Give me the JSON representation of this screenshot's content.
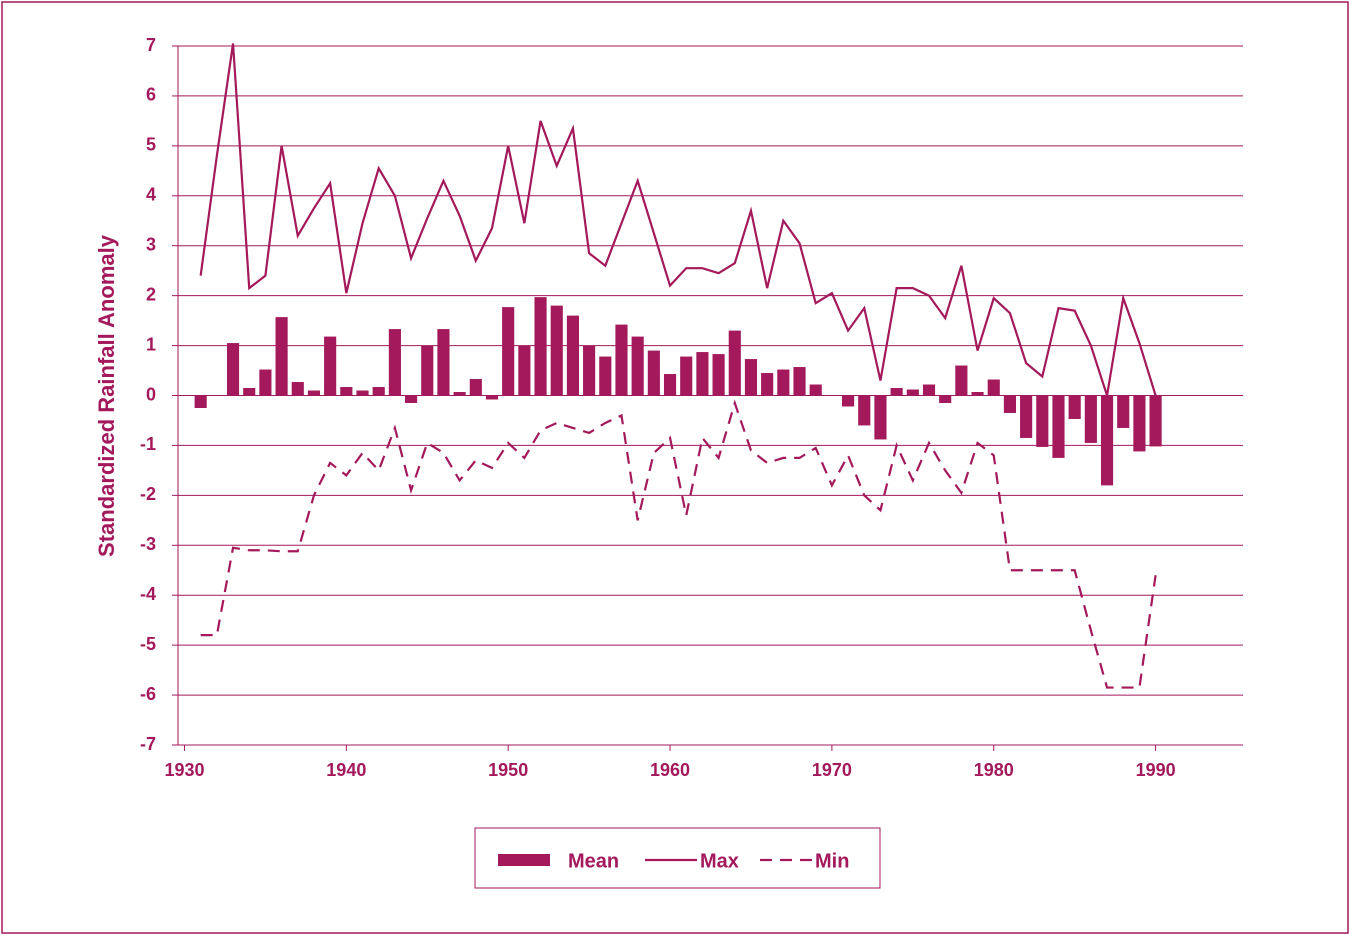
{
  "chart_data": {
    "type": "bar_line",
    "y_axis_label": "Standardized Rainfall Anomaly",
    "x": [
      1931,
      1932,
      1933,
      1934,
      1935,
      1936,
      1937,
      1938,
      1939,
      1940,
      1941,
      1942,
      1943,
      1944,
      1945,
      1946,
      1947,
      1948,
      1949,
      1950,
      1951,
      1952,
      1953,
      1954,
      1955,
      1956,
      1957,
      1958,
      1959,
      1960,
      1961,
      1962,
      1963,
      1964,
      1965,
      1966,
      1967,
      1968,
      1969,
      1970,
      1971,
      1972,
      1973,
      1974,
      1975,
      1976,
      1977,
      1978,
      1979,
      1980,
      1981,
      1982,
      1983,
      1984,
      1985,
      1986,
      1987,
      1988,
      1989,
      1990
    ],
    "series": [
      {
        "name": "Mean",
        "kind": "bar",
        "color": "#a3195b",
        "values": [
          -0.25,
          0,
          1.05,
          0.15,
          0.52,
          1.57,
          0.27,
          0.1,
          1.18,
          0.17,
          0.1,
          0.17,
          1.33,
          -0.15,
          1.0,
          1.33,
          0.07,
          0.33,
          -0.08,
          1.77,
          1.0,
          1.97,
          1.8,
          1.6,
          1.0,
          0.78,
          1.42,
          1.18,
          0.9,
          0.43,
          0.78,
          0.87,
          0.83,
          1.3,
          0.73,
          0.45,
          0.52,
          0.57,
          0.22,
          0,
          -0.22,
          -0.6,
          -0.88,
          0.15,
          0.12,
          0.22,
          -0.15,
          0.6,
          0.07,
          0.32,
          -0.35,
          -0.85,
          -1.03,
          -1.25,
          -0.47,
          -0.95,
          -1.8,
          -0.65,
          -1.12,
          -1.02
        ]
      },
      {
        "name": "Max",
        "kind": "line",
        "dash": "solid",
        "color": "#a3195b",
        "values": [
          2.4,
          4.8,
          7.05,
          2.15,
          2.4,
          5.0,
          3.2,
          3.75,
          4.25,
          2.05,
          3.45,
          4.55,
          4.0,
          2.75,
          3.55,
          4.3,
          3.6,
          2.7,
          3.35,
          5.0,
          3.45,
          5.5,
          4.6,
          5.35,
          2.85,
          2.6,
          3.45,
          4.3,
          3.25,
          2.2,
          2.55,
          2.55,
          2.45,
          2.65,
          3.7,
          2.15,
          3.5,
          3.05,
          1.85,
          2.05,
          1.3,
          1.75,
          0.3,
          2.15,
          2.15,
          2.0,
          1.55,
          2.6,
          0.9,
          1.95,
          1.65,
          0.65,
          0.38,
          1.75,
          1.7,
          1.0,
          0.0,
          1.95,
          1.05,
          0.0
        ]
      },
      {
        "name": "Min",
        "kind": "line",
        "dash": "dashed",
        "color": "#a3195b",
        "values": [
          -4.8,
          -4.8,
          -3.05,
          -3.1,
          -3.1,
          -3.12,
          -3.12,
          -2.0,
          -1.35,
          -1.6,
          -1.15,
          -1.5,
          -0.65,
          -1.9,
          -0.95,
          -1.15,
          -1.7,
          -1.3,
          -1.45,
          -0.95,
          -1.25,
          -0.7,
          -0.55,
          -0.65,
          -0.75,
          -0.55,
          -0.4,
          -2.5,
          -1.15,
          -0.85,
          -2.4,
          -0.85,
          -1.25,
          -0.15,
          -1.1,
          -1.35,
          -1.25,
          -1.25,
          -1.05,
          -1.8,
          -1.2,
          -2.0,
          -2.3,
          -1.0,
          -1.7,
          -0.95,
          -1.5,
          -1.95,
          -0.95,
          -1.2,
          -3.5,
          -3.5,
          -3.5,
          -3.5,
          -3.5,
          -4.7,
          -5.85,
          -5.85,
          -5.85,
          -3.6
        ]
      }
    ],
    "xlim": [
      1929.6,
      1995.4
    ],
    "xticks": [
      1930,
      1940,
      1950,
      1960,
      1970,
      1980,
      1990
    ],
    "ylim": [
      -7,
      7
    ],
    "yticks": [
      -7,
      -6,
      -5,
      -4,
      -3,
      -2,
      -1,
      0,
      1,
      2,
      3,
      4,
      5,
      6,
      7
    ],
    "grid": true,
    "legend": "bottom"
  }
}
